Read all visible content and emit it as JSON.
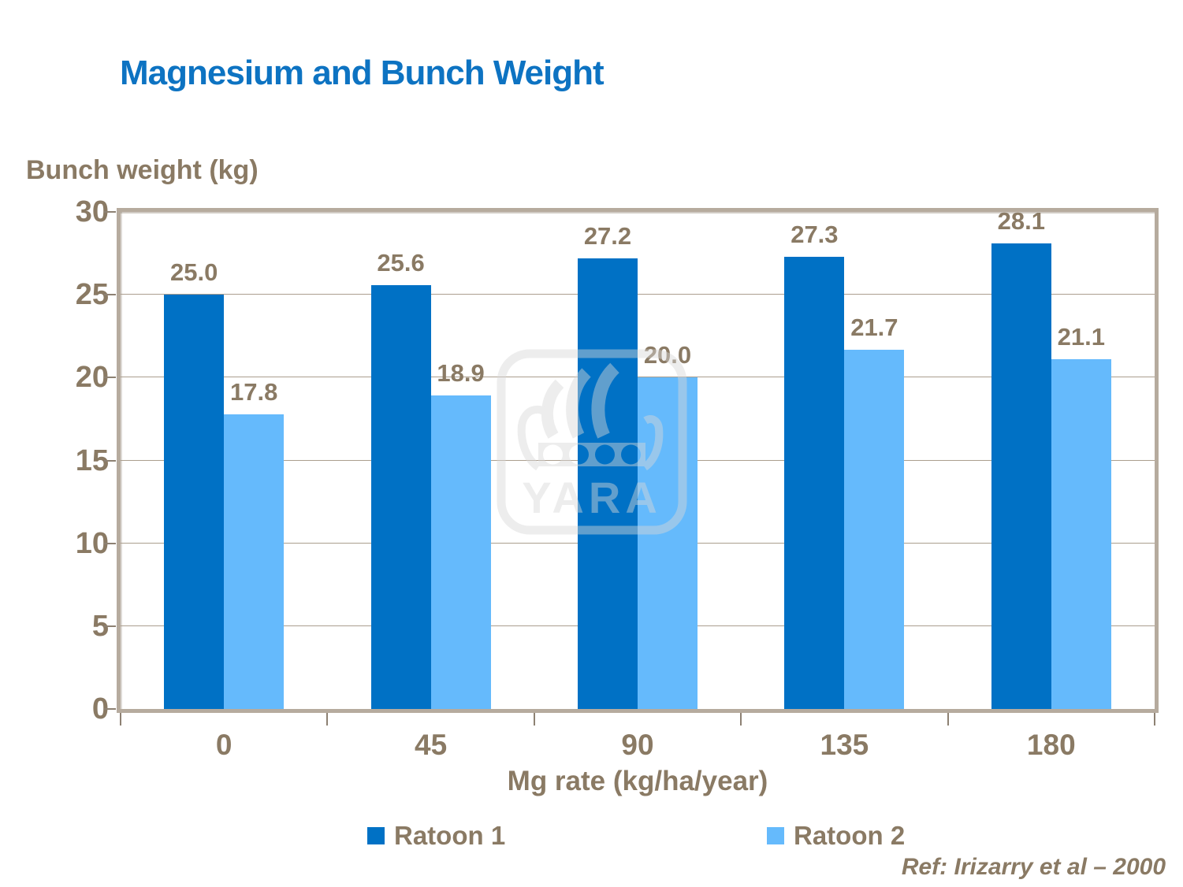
{
  "title": "Magnesium and Bunch Weight",
  "ref_note": "Ref: Irizarry et al – 2000",
  "watermark": {
    "brand": "YARA"
  },
  "colors": {
    "title_blue": "#0d73c2",
    "series1": "#0071c5",
    "series2": "#65bafc",
    "text_brown": "#8a7a64",
    "gridline": "#ab9e8e",
    "plot_border": "#b6ab9e",
    "tick": "#8d8173",
    "watermark_gray": "#d8d8d8"
  },
  "chart_data": {
    "type": "bar",
    "title": "Magnesium and Bunch Weight",
    "categories": [
      "0",
      "45",
      "90",
      "135",
      "180"
    ],
    "series": [
      {
        "name": "Ratoon 1",
        "color_key": "series1",
        "values": [
          25.0,
          25.6,
          27.2,
          27.3,
          28.1
        ],
        "labels": [
          "25.0",
          "25.6",
          "27.2",
          "27.3",
          "28.1"
        ]
      },
      {
        "name": "Ratoon 2",
        "color_key": "series2",
        "values": [
          17.8,
          18.9,
          20.0,
          21.7,
          21.1
        ],
        "labels": [
          "17.8",
          "18.9",
          "20.0",
          "21.7",
          "21.1"
        ]
      }
    ],
    "xlabel": "Mg rate (kg/ha/year)",
    "ylabel": "Bunch weight (kg)",
    "ylim": [
      0,
      30
    ],
    "yticks": [
      0,
      5,
      10,
      15,
      20,
      25,
      30
    ],
    "grid": true,
    "legend_position": "bottom"
  }
}
